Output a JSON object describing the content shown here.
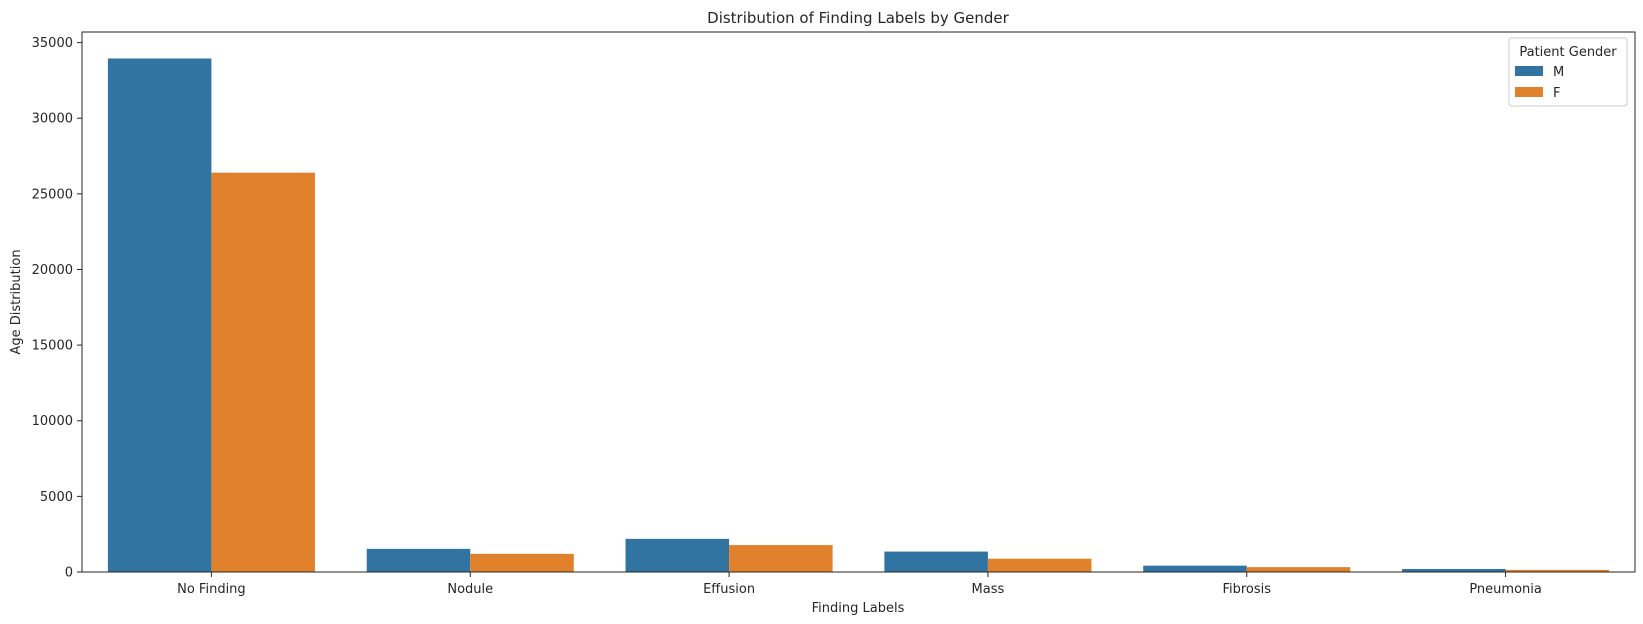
{
  "chart_data": {
    "type": "bar",
    "title": "Distribution of Finding Labels by Gender",
    "xlabel": "Finding Labels",
    "ylabel": "Age Distribution",
    "categories": [
      "No Finding",
      "Nodule",
      "Effusion",
      "Mass",
      "Fibrosis",
      "Pneumonia"
    ],
    "series": [
      {
        "name": "M",
        "color": "#3274a1",
        "values": [
          33950,
          1530,
          2190,
          1350,
          420,
          200
        ]
      },
      {
        "name": "F",
        "color": "#e1812c",
        "values": [
          26400,
          1200,
          1780,
          880,
          320,
          140
        ]
      }
    ],
    "ylim": [
      0,
      35700
    ],
    "yticks": [
      0,
      5000,
      10000,
      15000,
      20000,
      25000,
      30000,
      35000
    ],
    "legend": {
      "title": "Patient Gender",
      "placement": "top-right"
    },
    "grid": false
  }
}
